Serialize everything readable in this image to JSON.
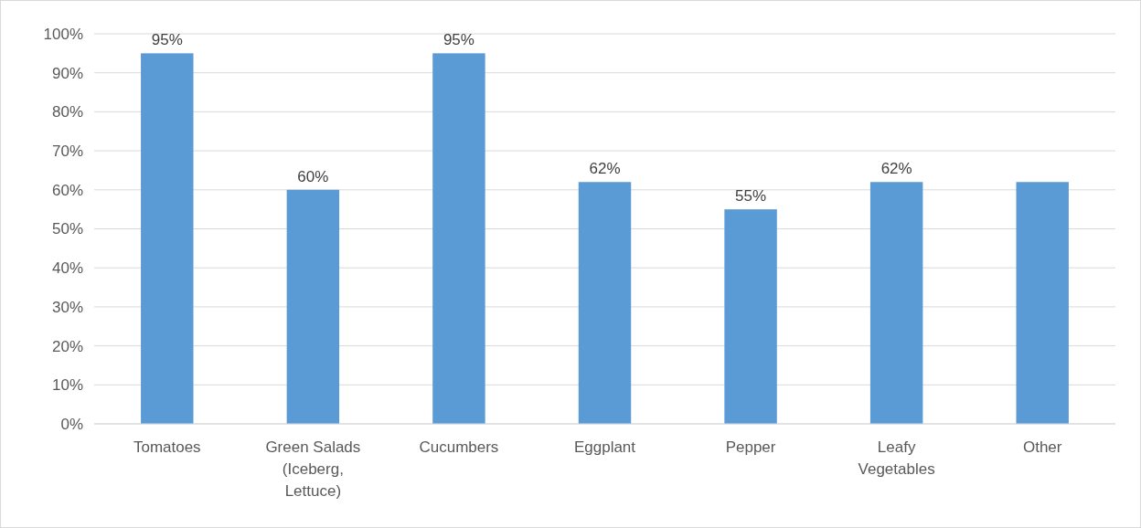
{
  "chart_data": {
    "type": "bar",
    "categories": [
      "Tomatoes",
      "Green Salads (Iceberg, Lettuce)",
      "Cucumbers",
      "Eggplant",
      "Pepper",
      "Leafy Vegetables",
      "Other"
    ],
    "values": [
      95,
      60,
      95,
      62,
      55,
      62,
      62
    ],
    "value_labels": [
      "95%",
      "60%",
      "95%",
      "62%",
      "55%",
      "62%",
      null
    ],
    "color": "#5b9bd5",
    "ylim": [
      0,
      100
    ],
    "yticks": [
      {
        "value": 0,
        "label": "0%"
      },
      {
        "value": 10,
        "label": "10%"
      },
      {
        "value": 20,
        "label": "20%"
      },
      {
        "value": 30,
        "label": "30%"
      },
      {
        "value": 40,
        "label": "40%"
      },
      {
        "value": 50,
        "label": "50%"
      },
      {
        "value": 60,
        "label": "60%"
      },
      {
        "value": 70,
        "label": "70%"
      },
      {
        "value": 80,
        "label": "80%"
      },
      {
        "value": 90,
        "label": "90%"
      },
      {
        "value": 100,
        "label": "100%"
      }
    ],
    "grid": "y"
  }
}
